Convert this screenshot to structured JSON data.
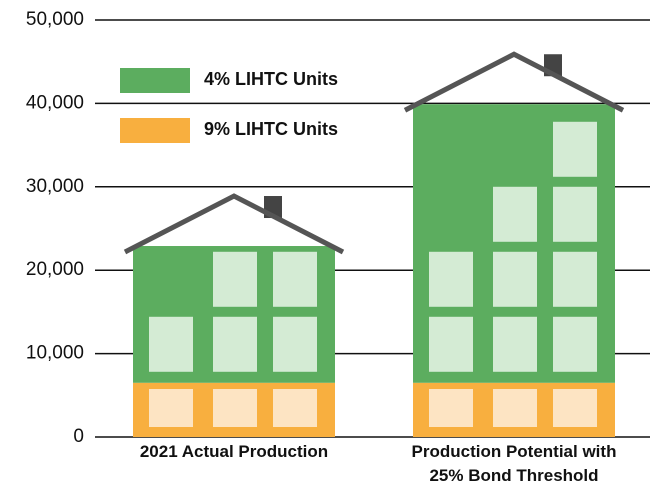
{
  "chart_data": {
    "type": "stacked-bar",
    "categories": [
      "2021 Actual Production",
      "Production Potential with 25% Bond Threshold"
    ],
    "series": [
      {
        "name": "9% LIHTC Units",
        "color": "#f8af3f",
        "values": [
          6500,
          6500
        ]
      },
      {
        "name": "4% LIHTC Units",
        "color": "#5cad5f",
        "values": [
          16400,
          33400
        ]
      }
    ],
    "ylim": [
      0,
      50000
    ],
    "yticks": [
      0,
      {
        "value": 10000,
        "label": "10,000"
      },
      {
        "value": 20000,
        "label": "20,000"
      },
      {
        "value": 30000,
        "label": "30,000"
      },
      {
        "value": 40000,
        "label": "40,000"
      },
      {
        "value": 50000,
        "label": "50,000"
      }
    ],
    "grid": true
  }
}
